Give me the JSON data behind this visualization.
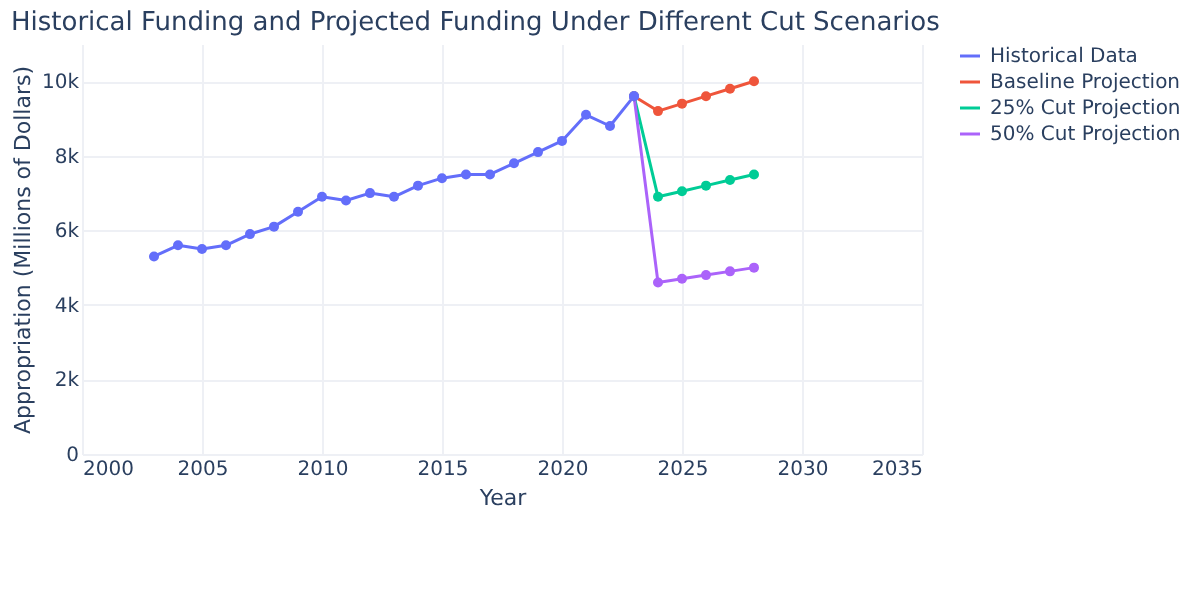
{
  "chart_data": {
    "type": "line",
    "title": "Historical Funding and Projected Funding Under Different Cut Scenarios",
    "xlabel": "Year",
    "ylabel": "Appropriation (Millions of Dollars)",
    "series": [
      {
        "name": "Historical Data",
        "color": "#636efa",
        "x": [
          2003,
          2004,
          2005,
          2006,
          2007,
          2008,
          2009,
          2010,
          2011,
          2012,
          2013,
          2014,
          2015,
          2016,
          2017,
          2018,
          2019,
          2020,
          2021,
          2022,
          2023
        ],
        "values": [
          5300,
          5600,
          5500,
          5600,
          5900,
          6100,
          6500,
          6900,
          6800,
          7000,
          6900,
          7200,
          7400,
          7500,
          7500,
          7800,
          8100,
          8400,
          9100,
          8800,
          9600
        ]
      },
      {
        "name": "Baseline Projection",
        "color": "#ef553b",
        "x": [
          2023,
          2024,
          2025,
          2026,
          2027,
          2028
        ],
        "values": [
          9600,
          9200,
          9400,
          9600,
          9800,
          10000
        ]
      },
      {
        "name": "25% Cut Projection",
        "color": "#00cc96",
        "x": [
          2023,
          2024,
          2025,
          2026,
          2027,
          2028
        ],
        "values": [
          9600,
          6900,
          7050,
          7200,
          7350,
          7500
        ]
      },
      {
        "name": "50% Cut Projection",
        "color": "#ab63fa",
        "x": [
          2023,
          2024,
          2025,
          2026,
          2027,
          2028
        ],
        "values": [
          9600,
          4600,
          4700,
          4800,
          4900,
          5000
        ]
      }
    ],
    "xlim": [
      2000,
      2035
    ],
    "xticks": [
      2000,
      2005,
      2010,
      2015,
      2020,
      2025,
      2030,
      2035
    ],
    "ylim": [
      0,
      11000
    ],
    "yticks": [
      0,
      {
        "value": 2000,
        "label": "2k"
      },
      {
        "value": 4000,
        "label": "4k"
      },
      {
        "value": 6000,
        "label": "6k"
      },
      {
        "value": 8000,
        "label": "8k"
      },
      {
        "value": 10000,
        "label": "10k"
      }
    ],
    "grid": true,
    "legend": "top right",
    "marker": "circle",
    "line_style": "solid"
  }
}
